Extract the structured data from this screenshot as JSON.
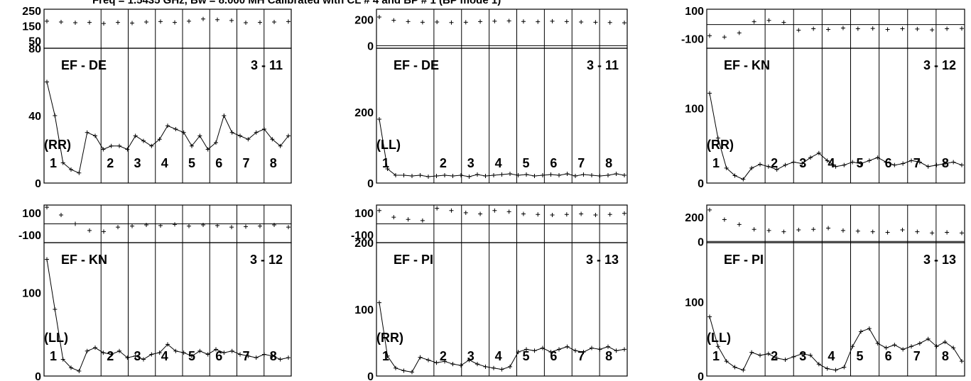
{
  "title": "Freq = 1.5435 GHz, Bw = 8.000 MH  Calibrated with CL # 4 and BP # 1 (BP mode 1)",
  "chart_data": [
    {
      "type": "scatter",
      "baseline": "EF - DE",
      "pol": "(RR)",
      "scan": "3 - 11",
      "segments": [
        "1",
        "2",
        "3",
        "4",
        "5",
        "6",
        "7",
        "8"
      ],
      "phase": {
        "ticks": [
          "250",
          "150",
          "50"
        ],
        "ylim": [
          0,
          260
        ],
        "ref": null,
        "values": [
          180,
          175,
          170,
          172,
          165,
          172,
          168,
          175,
          178,
          172,
          180,
          195,
          190,
          185,
          170,
          172,
          175,
          178
        ]
      },
      "amp": {
        "ticks": [
          "80",
          "40",
          "0"
        ],
        "ylim": [
          0,
          80
        ],
        "values": [
          60,
          40,
          12,
          8,
          6,
          30,
          28,
          20,
          22,
          22,
          20,
          28,
          25,
          22,
          26,
          34,
          32,
          30,
          22,
          28,
          20,
          24,
          40,
          30,
          28,
          26,
          30,
          32,
          26,
          22,
          28
        ]
      }
    },
    {
      "type": "scatter",
      "baseline": "EF - DE",
      "pol": "(LL)",
      "scan": "3 - 11",
      "segments": [
        "1",
        "2",
        "3",
        "4",
        "5",
        "6",
        "7",
        "8"
      ],
      "phase": {
        "ticks": [
          "200",
          "0"
        ],
        "ylim": [
          -20,
          280
        ],
        "ref": 0,
        "values": [
          220,
          195,
          185,
          180,
          182,
          178,
          180,
          185,
          188,
          190,
          186,
          184,
          188,
          185,
          182,
          180,
          178,
          176
        ]
      },
      "amp": {
        "ticks": [
          "200",
          "0"
        ],
        "ylim": [
          0,
          380
        ],
        "values": [
          180,
          40,
          22,
          22,
          20,
          22,
          18,
          20,
          22,
          20,
          22,
          18,
          24,
          20,
          22,
          24,
          26,
          22,
          24,
          20,
          22,
          24,
          22,
          26,
          20,
          24,
          22,
          20,
          22,
          26,
          22
        ]
      }
    },
    {
      "type": "scatter",
      "baseline": "EF - KN",
      "pol": "(RR)",
      "scan": "3 - 12",
      "segments": [
        "1",
        "2",
        "3",
        "4",
        "5",
        "6",
        "7",
        "8"
      ],
      "phase": {
        "ticks": [
          "100",
          "-100"
        ],
        "ylim": [
          -170,
          110
        ],
        "ref": 0,
        "values": [
          -80,
          -90,
          -60,
          20,
          30,
          15,
          -40,
          -30,
          -35,
          -25,
          -30,
          -28,
          -35,
          -30,
          -32,
          -38,
          -30,
          -28
        ]
      },
      "amp": {
        "ticks": [
          "100",
          "0"
        ],
        "ylim": [
          0,
          180
        ],
        "values": [
          120,
          60,
          20,
          10,
          5,
          20,
          25,
          22,
          18,
          24,
          28,
          26,
          34,
          40,
          30,
          22,
          24,
          28,
          26,
          30,
          34,
          28,
          24,
          26,
          30,
          28,
          22,
          24,
          26,
          28,
          24
        ]
      }
    },
    {
      "type": "scatter",
      "baseline": "EF - KN",
      "pol": "(LL)",
      "scan": "3 - 12",
      "segments": [
        "1",
        "2",
        "3",
        "4",
        "5",
        "6",
        "7",
        "8"
      ],
      "phase": {
        "ticks": [
          "100",
          "-100"
        ],
        "ylim": [
          -170,
          170
        ],
        "ref": 0,
        "values": [
          150,
          80,
          0,
          -60,
          -70,
          -30,
          -20,
          -10,
          -15,
          -5,
          -20,
          -10,
          -15,
          -30,
          -25,
          -20,
          -10,
          -30
        ]
      },
      "amp": {
        "ticks": [
          "100",
          "0"
        ],
        "ylim": [
          0,
          160
        ],
        "values": [
          140,
          80,
          20,
          10,
          6,
          30,
          34,
          28,
          26,
          30,
          22,
          24,
          20,
          26,
          28,
          38,
          30,
          28,
          24,
          30,
          26,
          32,
          28,
          30,
          26,
          24,
          22,
          26,
          24,
          20,
          22
        ]
      }
    },
    {
      "type": "scatter",
      "baseline": "EF - PI",
      "pol": "(RR)",
      "scan": "3 - 13",
      "segments": [
        "1",
        "2",
        "3",
        "4",
        "5",
        "6",
        "7",
        "8"
      ],
      "phase": {
        "ticks": [
          "100",
          "-100"
        ],
        "ylim": [
          -170,
          170
        ],
        "ref": 0,
        "values": [
          120,
          60,
          40,
          30,
          140,
          120,
          100,
          90,
          120,
          110,
          90,
          85,
          80,
          85,
          90,
          80,
          85,
          95
        ]
      },
      "amp": {
        "ticks": [
          "200",
          "100",
          "0"
        ],
        "ylim": [
          0,
          200
        ],
        "values": [
          110,
          30,
          12,
          8,
          6,
          28,
          24,
          20,
          22,
          18,
          16,
          24,
          18,
          14,
          12,
          10,
          14,
          36,
          40,
          38,
          42,
          36,
          40,
          44,
          38,
          36,
          42,
          40,
          44,
          38,
          40
        ]
      }
    },
    {
      "type": "scatter",
      "baseline": "EF - PI",
      "pol": "(LL)",
      "scan": "3 - 13",
      "segments": [
        "1",
        "2",
        "3",
        "4",
        "5",
        "6",
        "7",
        "8"
      ],
      "phase": {
        "ticks": [
          "200",
          "0"
        ],
        "ylim": [
          -10,
          300
        ],
        "ref": 0,
        "values": [
          260,
          180,
          140,
          100,
          90,
          80,
          95,
          100,
          110,
          90,
          85,
          80,
          75,
          95,
          80,
          70,
          75,
          70
        ]
      },
      "amp": {
        "ticks": [
          "100",
          "0"
        ],
        "ylim": [
          0,
          180
        ],
        "values": [
          80,
          40,
          20,
          12,
          8,
          32,
          28,
          30,
          24,
          22,
          26,
          30,
          28,
          16,
          10,
          8,
          12,
          40,
          60,
          64,
          44,
          38,
          42,
          36,
          40,
          44,
          50,
          40,
          46,
          38,
          20
        ]
      }
    }
  ]
}
